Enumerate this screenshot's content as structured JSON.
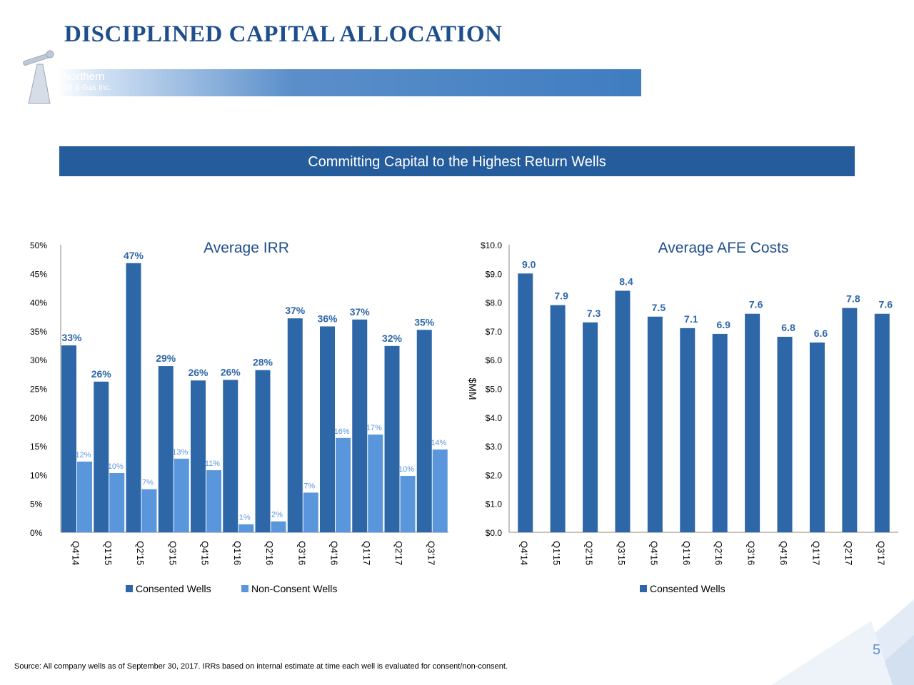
{
  "header": {
    "title": "DISCIPLINED CAPITAL ALLOCATION",
    "logo_text_line1": "Northern",
    "logo_text_line2": "Oil & Gas Inc."
  },
  "banner": {
    "text": "Committing Capital to the Highest Return Wells"
  },
  "footer": {
    "source": "Source:  All company wells as of September 30, 2017.  IRRs based on internal estimate at time each well is evaluated for consent/non-consent.",
    "page_number": "5"
  },
  "colors": {
    "dark_blue": "#2E67A8",
    "light_blue": "#5A96DC",
    "title_blue": "#1F4E8C",
    "banner_blue": "#255C9C"
  },
  "chart_data": [
    {
      "type": "bar",
      "title": "Average IRR",
      "categories": [
        "Q4'14",
        "Q1'15",
        "Q2'15",
        "Q3'15",
        "Q4'15",
        "Q1'16",
        "Q2'16",
        "Q3'16",
        "Q4'16",
        "Q1'17",
        "Q2'17",
        "Q3'17"
      ],
      "series": [
        {
          "name": "Consented Wells",
          "values": [
            32.5,
            26.2,
            46.8,
            28.9,
            26.4,
            26.5,
            28.2,
            37.2,
            35.8,
            37.0,
            32.4,
            35.2
          ],
          "labels": [
            "33%",
            "26%",
            "47%",
            "29%",
            "26%",
            "26%",
            "28%",
            "37%",
            "36%",
            "37%",
            "32%",
            "35%"
          ]
        },
        {
          "name": "Non-Consent Wells",
          "values": [
            12.3,
            10.3,
            7.5,
            12.8,
            10.8,
            1.4,
            1.9,
            6.9,
            16.4,
            17.0,
            9.8,
            14.4
          ],
          "labels": [
            "12%",
            "10%",
            "7%",
            "13%",
            "11%",
            "1%",
            "2%",
            "7%",
            "16%",
            "17%",
            "10%",
            "14%"
          ]
        }
      ],
      "yticks": [
        "0%",
        "5%",
        "10%",
        "15%",
        "20%",
        "25%",
        "30%",
        "35%",
        "40%",
        "45%",
        "50%"
      ],
      "ylim": [
        0,
        50
      ],
      "ylabel": "",
      "legend": "bottom"
    },
    {
      "type": "bar",
      "title": "Average AFE Costs",
      "categories": [
        "Q4'14",
        "Q1'15",
        "Q2'15",
        "Q3'15",
        "Q4'15",
        "Q1'16",
        "Q2'16",
        "Q3'16",
        "Q4'16",
        "Q1'17",
        "Q2'17",
        "Q3'17"
      ],
      "series": [
        {
          "name": "Consented Wells",
          "values": [
            9.0,
            7.9,
            7.3,
            8.4,
            7.5,
            7.1,
            6.9,
            7.6,
            6.8,
            6.6,
            7.8,
            7.6
          ],
          "labels": [
            "9.0",
            "7.9",
            "7.3",
            "8.4",
            "7.5",
            "7.1",
            "6.9",
            "7.6",
            "6.8",
            "6.6",
            "7.8",
            "7.6"
          ]
        }
      ],
      "yticks": [
        "$0.0",
        "$1.0",
        "$2.0",
        "$3.0",
        "$4.0",
        "$5.0",
        "$6.0",
        "$7.0",
        "$8.0",
        "$9.0",
        "$10.0"
      ],
      "ylim": [
        0,
        10
      ],
      "ylabel": "$MM",
      "legend": "bottom"
    }
  ]
}
